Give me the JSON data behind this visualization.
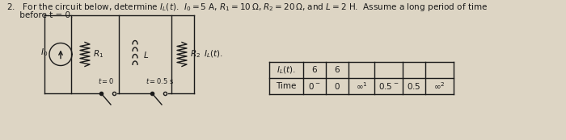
{
  "background_color": "#ddd5c4",
  "text_color": "#1a1a1a",
  "font_size": 7.5,
  "title_line1": "2.   For the circuit below, determine $I_L(t)$.  $I_0 = 5$ A, $R_1 = 10\\,\\Omega$, $R_2 = 20\\,\\Omega$, and $L = 2$ H.  Assume a long period of time",
  "title_line2": "     before t = 0.",
  "circuit": {
    "I0_label": "$I_0$",
    "R1_label": "$R_1$",
    "R2_label": "$R_2$",
    "L_label": "$L$",
    "sw1_label": "$t=0$",
    "sw2_label": "$t=0.5$ s"
  },
  "table": {
    "headers": [
      "Time",
      "$0^-$",
      "$0$",
      "$\\infty^1$",
      "$0.5^-$",
      "$0.5$",
      "$\\infty^2$"
    ],
    "row_label": "$I_L(t).$",
    "row_values": [
      "6",
      "6",
      "",
      "",
      "",
      ""
    ]
  }
}
